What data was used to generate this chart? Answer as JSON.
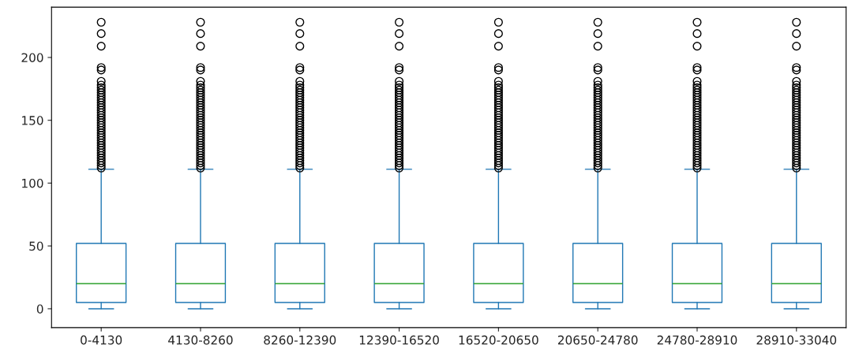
{
  "chart_data": {
    "type": "box",
    "categories": [
      "0-4130",
      "4130-8260",
      "8260-12390",
      "12390-16520",
      "16520-20650",
      "20650-24780",
      "24780-28910",
      "28910-33040"
    ],
    "series": [
      {
        "color": "#1f77b4",
        "boxes": [
          {
            "low": 0,
            "q1": 5,
            "median": 20,
            "q3": 52,
            "high": 111,
            "outliers": [
              112,
              114,
              116,
              118,
              120,
              122,
              124,
              126,
              128,
              130,
              132,
              134,
              136,
              138,
              140,
              142,
              144,
              146,
              148,
              150,
              152,
              154,
              156,
              158,
              160,
              162,
              164,
              166,
              168,
              170,
              172,
              174,
              176,
              178,
              181,
              190,
              192,
              209,
              219,
              228
            ]
          },
          {
            "low": 0,
            "q1": 5,
            "median": 20,
            "q3": 52,
            "high": 111,
            "outliers": [
              112,
              114,
              116,
              118,
              120,
              122,
              124,
              126,
              128,
              130,
              132,
              134,
              136,
              138,
              140,
              142,
              144,
              146,
              148,
              150,
              152,
              154,
              156,
              158,
              160,
              162,
              164,
              166,
              168,
              170,
              172,
              174,
              176,
              178,
              181,
              190,
              192,
              209,
              219,
              228
            ]
          },
          {
            "low": 0,
            "q1": 5,
            "median": 20,
            "q3": 52,
            "high": 111,
            "outliers": [
              112,
              114,
              116,
              118,
              120,
              122,
              124,
              126,
              128,
              130,
              132,
              134,
              136,
              138,
              140,
              142,
              144,
              146,
              148,
              150,
              152,
              154,
              156,
              158,
              160,
              162,
              164,
              166,
              168,
              170,
              172,
              174,
              176,
              178,
              181,
              190,
              192,
              209,
              219,
              228
            ]
          },
          {
            "low": 0,
            "q1": 5,
            "median": 20,
            "q3": 52,
            "high": 111,
            "outliers": [
              112,
              114,
              116,
              118,
              120,
              122,
              124,
              126,
              128,
              130,
              132,
              134,
              136,
              138,
              140,
              142,
              144,
              146,
              148,
              150,
              152,
              154,
              156,
              158,
              160,
              162,
              164,
              166,
              168,
              170,
              172,
              174,
              176,
              178,
              181,
              190,
              192,
              209,
              219,
              228
            ]
          },
          {
            "low": 0,
            "q1": 5,
            "median": 20,
            "q3": 52,
            "high": 111,
            "outliers": [
              112,
              114,
              116,
              118,
              120,
              122,
              124,
              126,
              128,
              130,
              132,
              134,
              136,
              138,
              140,
              142,
              144,
              146,
              148,
              150,
              152,
              154,
              156,
              158,
              160,
              162,
              164,
              166,
              168,
              170,
              172,
              174,
              176,
              178,
              181,
              190,
              192,
              209,
              219,
              228
            ]
          },
          {
            "low": 0,
            "q1": 5,
            "median": 20,
            "q3": 52,
            "high": 111,
            "outliers": [
              112,
              114,
              116,
              118,
              120,
              122,
              124,
              126,
              128,
              130,
              132,
              134,
              136,
              138,
              140,
              142,
              144,
              146,
              148,
              150,
              152,
              154,
              156,
              158,
              160,
              162,
              164,
              166,
              168,
              170,
              172,
              174,
              176,
              178,
              181,
              190,
              192,
              209,
              219,
              228
            ]
          },
          {
            "low": 0,
            "q1": 5,
            "median": 20,
            "q3": 52,
            "high": 111,
            "outliers": [
              112,
              114,
              116,
              118,
              120,
              122,
              124,
              126,
              128,
              130,
              132,
              134,
              136,
              138,
              140,
              142,
              144,
              146,
              148,
              150,
              152,
              154,
              156,
              158,
              160,
              162,
              164,
              166,
              168,
              170,
              172,
              174,
              176,
              178,
              181,
              190,
              192,
              209,
              219,
              228
            ]
          },
          {
            "low": 0,
            "q1": 5,
            "median": 20,
            "q3": 52,
            "high": 111,
            "outliers": [
              112,
              114,
              116,
              118,
              120,
              122,
              124,
              126,
              128,
              130,
              132,
              134,
              136,
              138,
              140,
              142,
              144,
              146,
              148,
              150,
              152,
              154,
              156,
              158,
              160,
              162,
              164,
              166,
              168,
              170,
              172,
              174,
              176,
              178,
              181,
              190,
              192,
              209,
              219,
              228
            ]
          }
        ]
      }
    ],
    "ylim": [
      -15,
      240
    ],
    "yticks": [
      0,
      50,
      100,
      150,
      200
    ],
    "grid": false
  }
}
